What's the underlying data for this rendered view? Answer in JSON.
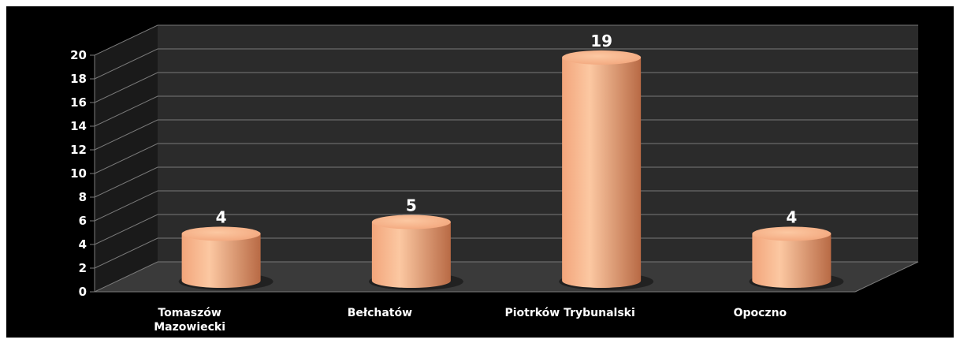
{
  "chart_data": {
    "type": "bar",
    "style": "3d-cylinder",
    "categories": [
      [
        "Tomaszów",
        "Mazowiecki"
      ],
      [
        "Bełchatów"
      ],
      [
        "Piotrków Trybunalski"
      ],
      [
        "Opoczno"
      ]
    ],
    "values": [
      4,
      5,
      19,
      4
    ],
    "data_labels": [
      "4",
      "5",
      "19",
      "4"
    ],
    "y_ticks": [
      "0",
      "2",
      "4",
      "6",
      "8",
      "10",
      "12",
      "14",
      "16",
      "18",
      "20"
    ],
    "ylim": [
      0,
      20
    ],
    "grid": true,
    "legend": "none"
  },
  "colors": {
    "background": "#000000",
    "back_wall": "#2b2b2b",
    "side_wall": "#1a1a1a",
    "floor": "#3a3a3a",
    "grid": "#7a7a7a",
    "bar_light": "#fcc8a2",
    "bar_base": "#f2a57b",
    "bar_dark": "#b86a45",
    "text": "#ffffff"
  }
}
